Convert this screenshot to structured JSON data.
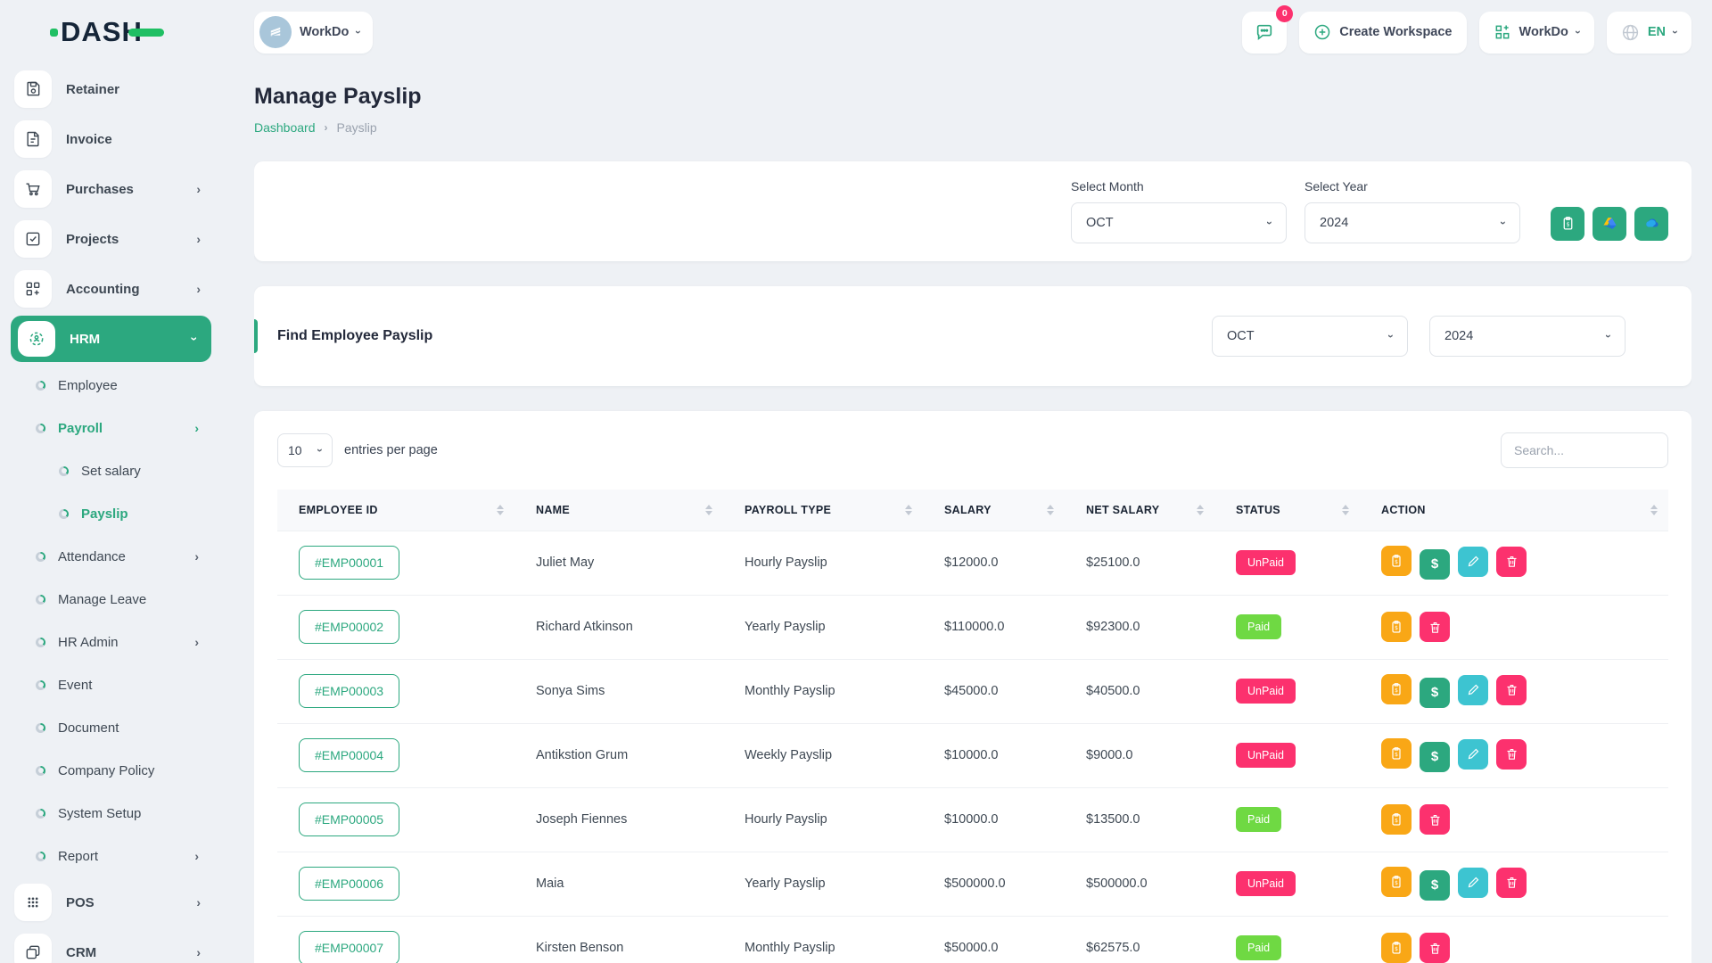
{
  "brand": {
    "name": "DASH"
  },
  "topbar": {
    "workspace_selector": {
      "label": "WorkDo"
    },
    "messages": {
      "badge": "0"
    },
    "create_workspace": {
      "label": "Create Workspace"
    },
    "workdo_menu": {
      "label": "WorkDo"
    },
    "language": {
      "label": "EN"
    }
  },
  "sidebar": {
    "items": [
      {
        "label": "Retainer"
      },
      {
        "label": "Invoice"
      },
      {
        "label": "Purchases"
      },
      {
        "label": "Projects"
      },
      {
        "label": "Accounting"
      },
      {
        "label": "HRM"
      }
    ],
    "hrm_children": [
      {
        "label": "Employee"
      },
      {
        "label": "Payroll"
      },
      {
        "label": "Set salary"
      },
      {
        "label": "Payslip"
      },
      {
        "label": "Attendance"
      },
      {
        "label": "Manage Leave"
      },
      {
        "label": "HR Admin"
      },
      {
        "label": "Event"
      },
      {
        "label": "Document"
      },
      {
        "label": "Company Policy"
      },
      {
        "label": "System Setup"
      },
      {
        "label": "Report"
      }
    ],
    "other_items": [
      {
        "label": "POS"
      },
      {
        "label": "CRM"
      }
    ]
  },
  "page": {
    "title": "Manage Payslip",
    "breadcrumb_home": "Dashboard",
    "breadcrumb_current": "Payslip"
  },
  "filters": {
    "month_label": "Select Month",
    "month_value": "OCT",
    "year_label": "Select Year",
    "year_value": "2024"
  },
  "find_section": {
    "title": "Find Employee Payslip",
    "month_value": "OCT",
    "year_value": "2024"
  },
  "table": {
    "entries_per_page": "10",
    "entries_label": "entries per page",
    "search_placeholder": "Search...",
    "columns": [
      "EMPLOYEE ID",
      "NAME",
      "PAYROLL TYPE",
      "SALARY",
      "NET SALARY",
      "STATUS",
      "ACTION"
    ],
    "rows": [
      {
        "employee_id": "#EMP00001",
        "name": "Juliet May",
        "payroll_type": "Hourly Payslip",
        "salary": "$12000.0",
        "net_salary": "$25100.0",
        "status": "UnPaid"
      },
      {
        "employee_id": "#EMP00002",
        "name": "Richard Atkinson",
        "payroll_type": "Yearly Payslip",
        "salary": "$110000.0",
        "net_salary": "$92300.0",
        "status": "Paid"
      },
      {
        "employee_id": "#EMP00003",
        "name": "Sonya Sims",
        "payroll_type": "Monthly Payslip",
        "salary": "$45000.0",
        "net_salary": "$40500.0",
        "status": "UnPaid"
      },
      {
        "employee_id": "#EMP00004",
        "name": "Antikstion Grum",
        "payroll_type": "Weekly Payslip",
        "salary": "$10000.0",
        "net_salary": "$9000.0",
        "status": "UnPaid"
      },
      {
        "employee_id": "#EMP00005",
        "name": "Joseph Fiennes",
        "payroll_type": "Hourly Payslip",
        "salary": "$10000.0",
        "net_salary": "$13500.0",
        "status": "Paid"
      },
      {
        "employee_id": "#EMP00006",
        "name": "Maia",
        "payroll_type": "Yearly Payslip",
        "salary": "$500000.0",
        "net_salary": "$500000.0",
        "status": "UnPaid"
      },
      {
        "employee_id": "#EMP00007",
        "name": "Kirsten Benson",
        "payroll_type": "Monthly Payslip",
        "salary": "$50000.0",
        "net_salary": "$62575.0",
        "status": "Paid"
      }
    ]
  },
  "colors": {
    "primary_green": "#2ca87f",
    "paid_green": "#6fd943",
    "unpaid_pink": "#fc316e",
    "action_orange": "#f9a716",
    "action_teal": "#3dc4d1",
    "logo_green": "#1fbf63",
    "page_background": "#eef1f5"
  }
}
